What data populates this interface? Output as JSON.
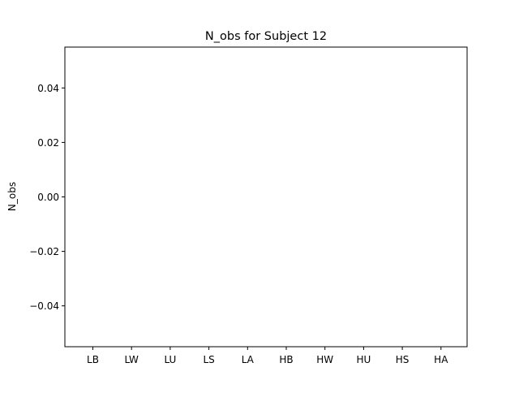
{
  "chart_data": {
    "type": "bar",
    "title": "N_obs for Subject 12",
    "xlabel": "",
    "ylabel": "N_obs",
    "categories": [
      "LB",
      "LW",
      "LU",
      "LS",
      "LA",
      "HB",
      "HW",
      "HU",
      "HS",
      "HA"
    ],
    "values": [
      0,
      0,
      0,
      0,
      0,
      0,
      0,
      0,
      0,
      0
    ],
    "ylim": [
      -0.055,
      0.055
    ],
    "yticks": [
      -0.04,
      -0.02,
      0.0,
      0.02,
      0.04
    ],
    "ytick_labels": [
      "−0.04",
      "−0.02",
      "0.00",
      "0.02",
      "0.04"
    ],
    "grid": false,
    "legend": "none",
    "bar_color": "#1f77b4"
  }
}
